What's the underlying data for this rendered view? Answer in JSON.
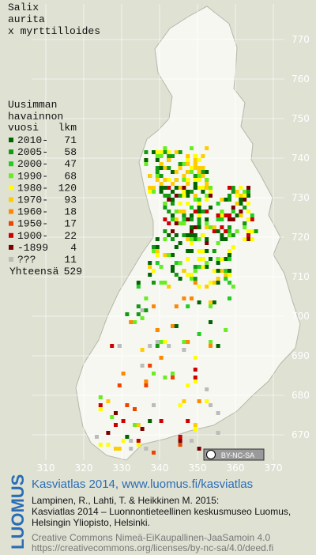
{
  "title": [
    "Salix",
    "aurita",
    "x myrttilloides"
  ],
  "legend": {
    "heading": [
      "Uusimman",
      "havainnon"
    ],
    "column_year": "vuosi",
    "column_count": "lkm",
    "rows": [
      {
        "label": "2010-",
        "count": "71",
        "color": "#006400"
      },
      {
        "label": "2005-",
        "count": "58",
        "color": "#139a13"
      },
      {
        "label": "2000-",
        "count": "47",
        "color": "#22cc22"
      },
      {
        "label": "1990-",
        "count": "68",
        "color": "#66ee22"
      },
      {
        "label": "1980-",
        "count": "120",
        "color": "#ffff00"
      },
      {
        "label": "1970-",
        "count": "93",
        "color": "#ffcc00"
      },
      {
        "label": "1960-",
        "count": "18",
        "color": "#ff8800"
      },
      {
        "label": "1950-",
        "count": "17",
        "color": "#ee4400"
      },
      {
        "label": "1900-",
        "count": "22",
        "color": "#cc0000"
      },
      {
        "label": "-1899",
        "count": "4",
        "color": "#7a0000"
      },
      {
        "label": "???",
        "count": "11",
        "color": "#bbbbbb"
      }
    ],
    "total_label": "Yhteensä",
    "total": "529"
  },
  "map": {
    "yticks": [
      770,
      760,
      750,
      740,
      730,
      720,
      710,
      700,
      690,
      680,
      670
    ],
    "xticks": [
      310,
      320,
      330,
      340,
      350,
      360,
      370
    ]
  },
  "license_badge": "BY-NC-SA",
  "footer": {
    "logo": "LUOMUS",
    "link": "Kasviatlas 2014, www.luomus.fi/kasviatlas",
    "citation": [
      "Lampinen, R., Lahti, T. & Heikkinen M. 2015:",
      "Kasviatlas 2014 – Luonnontieteellinen keskusmuseo Luomus,",
      "Helsingin Yliopisto, Helsinki."
    ],
    "license": [
      "Creative Commons Nimeä-EiKaupallinen-JaaSamoin 4.0",
      "https://creativecommons.org/licenses/by-nc-sa/4.0/deed.fi"
    ]
  }
}
